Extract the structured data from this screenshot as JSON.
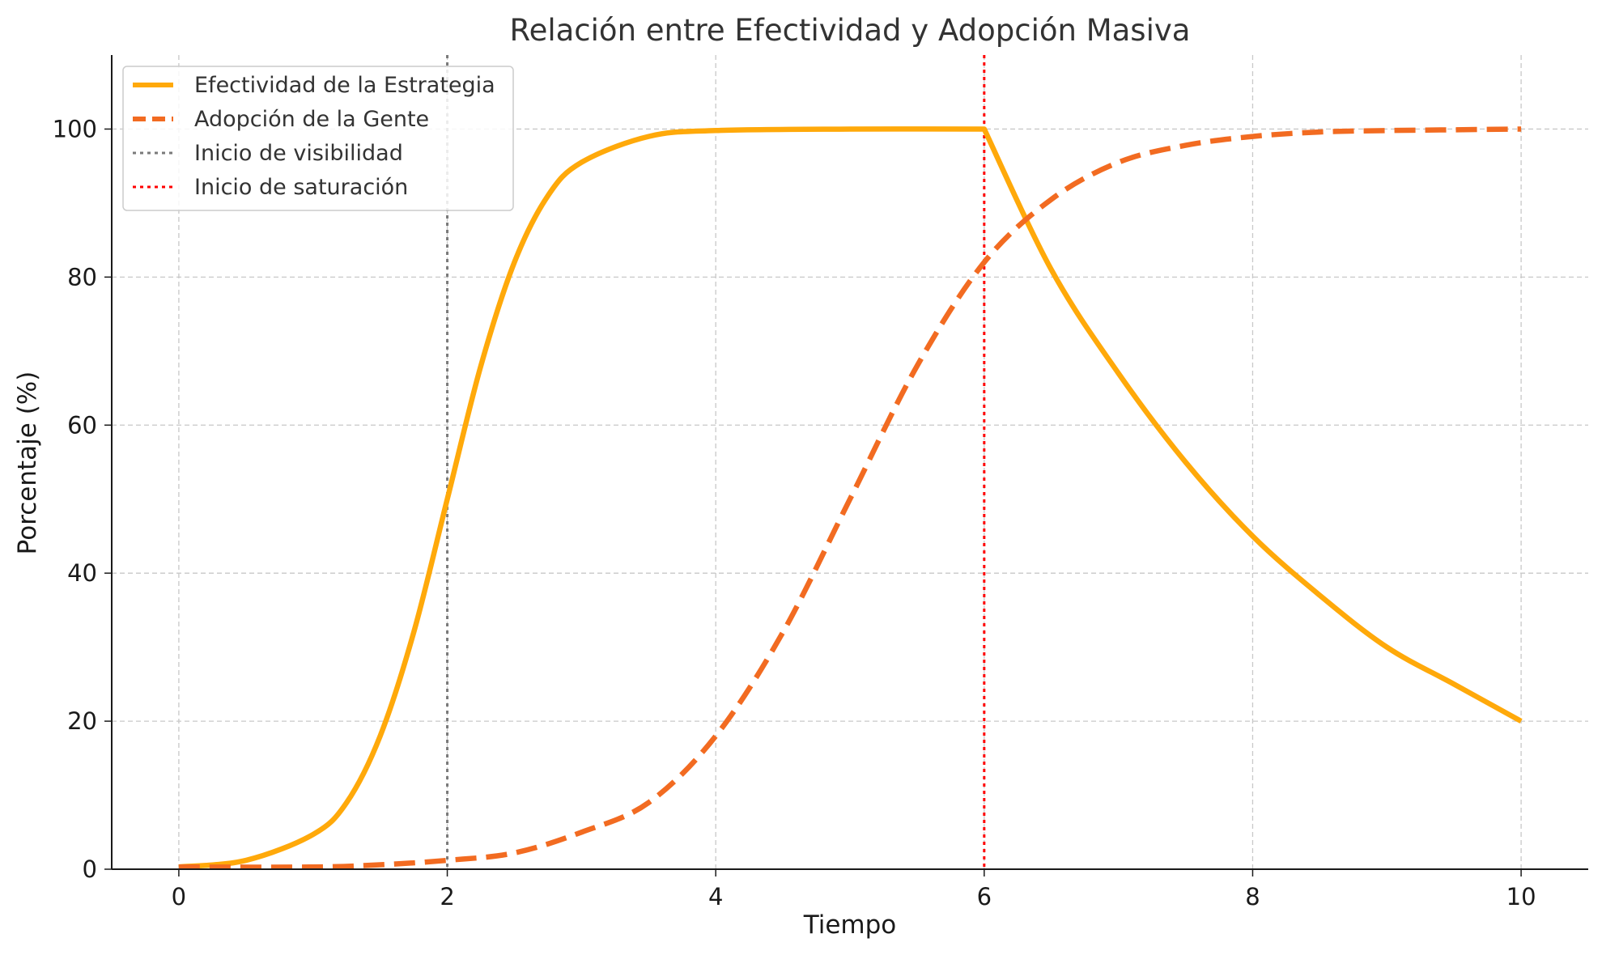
{
  "chart_data": {
    "type": "line",
    "title": "Relación entre Efectividad y Adopción Masiva",
    "xlabel": "Tiempo",
    "ylabel": "Porcentaje (%)",
    "xlim": [
      -0.5,
      10.5
    ],
    "ylim": [
      0,
      110
    ],
    "xticks": [
      0,
      2,
      4,
      6,
      8,
      10
    ],
    "yticks": [
      0,
      20,
      40,
      60,
      80,
      100
    ],
    "xtick_labels": [
      "0",
      "2",
      "4",
      "6",
      "8",
      "10"
    ],
    "ytick_labels": [
      "0",
      "20",
      "40",
      "60",
      "80",
      "100"
    ],
    "grid": true,
    "legend_position": "top-left",
    "series": [
      {
        "name": "Efectividad de la Estrategia",
        "color": "#FFA90A",
        "style": "solid",
        "x": [
          0,
          0.5,
          1,
          1.25,
          1.5,
          1.75,
          2,
          2.25,
          2.5,
          2.75,
          3,
          3.5,
          4,
          5,
          6,
          6.5,
          7,
          7.5,
          8,
          8.5,
          9,
          9.5,
          10
        ],
        "y": [
          0.3,
          1.2,
          4.7,
          9,
          18,
          32,
          50,
          68,
          82,
          91,
          95.5,
          99,
          99.8,
          100,
          100,
          81,
          67,
          55,
          45,
          37,
          30,
          25,
          20
        ]
      },
      {
        "name": "Adopción de la Gente",
        "color": "#F26B21",
        "style": "dashed",
        "x": [
          0,
          1,
          1.5,
          2,
          2.5,
          3,
          3.5,
          4,
          4.5,
          5,
          5.5,
          6,
          6.5,
          7,
          7.5,
          8,
          8.5,
          9,
          9.5,
          10
        ],
        "y": [
          0.3,
          0.3,
          0.6,
          1.2,
          2.2,
          5,
          9,
          18,
          32,
          50,
          68,
          82,
          90.5,
          95.5,
          97.8,
          99,
          99.6,
          99.8,
          99.9,
          100
        ]
      }
    ],
    "vlines": [
      {
        "name": "Inicio de visibilidad",
        "x": 2,
        "color": "#7a7a7a",
        "style": "dotted"
      },
      {
        "name": "Inicio de saturación",
        "x": 6,
        "color": "#ff0000",
        "style": "dotted"
      }
    ]
  }
}
